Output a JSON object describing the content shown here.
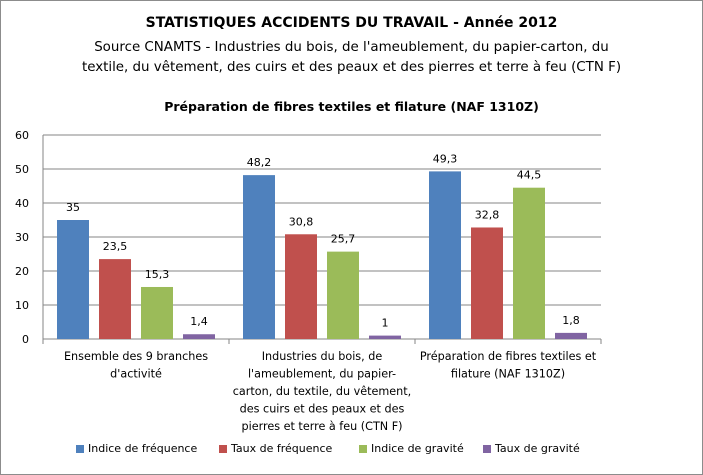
{
  "title": "STATISTIQUES ACCIDENTS DU TRAVAIL - Année 2012",
  "subtitle_line1": "Source CNAMTS -  Industries du bois,  de l'ameublement, du papier-carton, du",
  "subtitle_line2": "textile, du vêtement, des cuirs et des peaux et des pierres et terre à feu (CTN F)",
  "chart_title": "Préparation de fibres textiles et filature (NAF 1310Z)",
  "chart_data": {
    "type": "bar",
    "categories": [
      "Ensemble des 9 branches d'activité",
      "Industries du bois, de l'ameublement, du papier-carton, du textile, du vêtement, des cuirs et des peaux et des pierres et terre à feu (CTN F)",
      "Préparation de fibres textiles et filature (NAF 1310Z)"
    ],
    "category_lines": [
      [
        "Ensemble des 9 branches",
        "d'activité"
      ],
      [
        "Industries du bois, de",
        "l'ameublement, du papier-",
        "carton, du textile, du vêtement,",
        "des cuirs et des peaux et des",
        "pierres et terre à feu (CTN F)"
      ],
      [
        "Préparation de fibres textiles et",
        "filature (NAF 1310Z)"
      ]
    ],
    "series": [
      {
        "name": "Indice de fréquence",
        "color": "#4f81bd",
        "values": [
          35,
          48.2,
          49.3
        ],
        "labels": [
          "35",
          "48,2",
          "49,3"
        ]
      },
      {
        "name": "Taux de fréquence",
        "color": "#c0504d",
        "values": [
          23.5,
          30.8,
          32.8
        ],
        "labels": [
          "23,5",
          "30,8",
          "32,8"
        ]
      },
      {
        "name": "Indice de gravité",
        "color": "#9bbb59",
        "values": [
          15.3,
          25.7,
          44.5
        ],
        "labels": [
          "15,3",
          "25,7",
          "44,5"
        ]
      },
      {
        "name": "Taux de gravité",
        "color": "#8064a2",
        "values": [
          1.4,
          1,
          1.8
        ],
        "labels": [
          "1,4",
          "1",
          "1,8"
        ]
      }
    ],
    "ylim": [
      0,
      60
    ],
    "yticks": [
      0,
      10,
      20,
      30,
      40,
      50,
      60
    ],
    "grid": true,
    "legend_position": "bottom"
  }
}
